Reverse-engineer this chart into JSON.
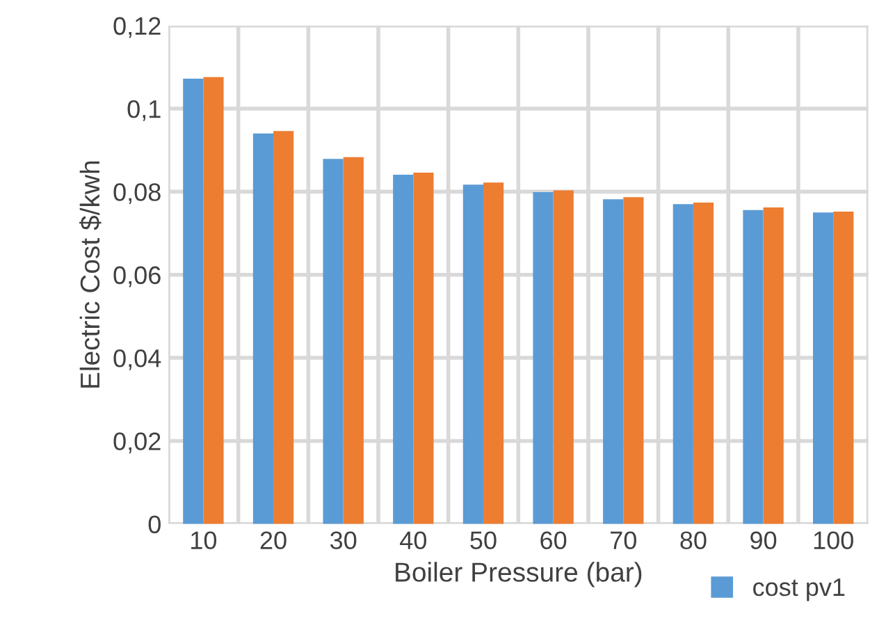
{
  "chart_data": {
    "type": "bar",
    "xlabel": "Boiler Pressure (bar)",
    "ylabel": "Electric Cost $/kwh",
    "categories": [
      "10",
      "20",
      "30",
      "40",
      "50",
      "60",
      "70",
      "80",
      "90",
      "100"
    ],
    "series": [
      {
        "name": "cost pv1",
        "color": "#5b9bd5",
        "values": [
          0.1072,
          0.094,
          0.0879,
          0.0841,
          0.0817,
          0.0799,
          0.0782,
          0.077,
          0.0756,
          0.075
        ]
      },
      {
        "color": "#ed7d31",
        "values": [
          0.1076,
          0.0946,
          0.0883,
          0.0846,
          0.0822,
          0.0803,
          0.0787,
          0.0774,
          0.0762,
          0.0752
        ]
      }
    ],
    "ylim": [
      0,
      0.12
    ],
    "yticks": [
      0,
      {
        "value": 0.02,
        "label": "0,02"
      },
      {
        "value": 0.04,
        "label": "0,04"
      },
      {
        "value": 0.06,
        "label": "0,06"
      },
      {
        "value": 0.08,
        "label": "0,08"
      },
      {
        "value": 0.1,
        "label": "0,1"
      },
      {
        "value": 0.12,
        "label": "0,12"
      }
    ],
    "grid": true,
    "legend": "bottom right"
  }
}
